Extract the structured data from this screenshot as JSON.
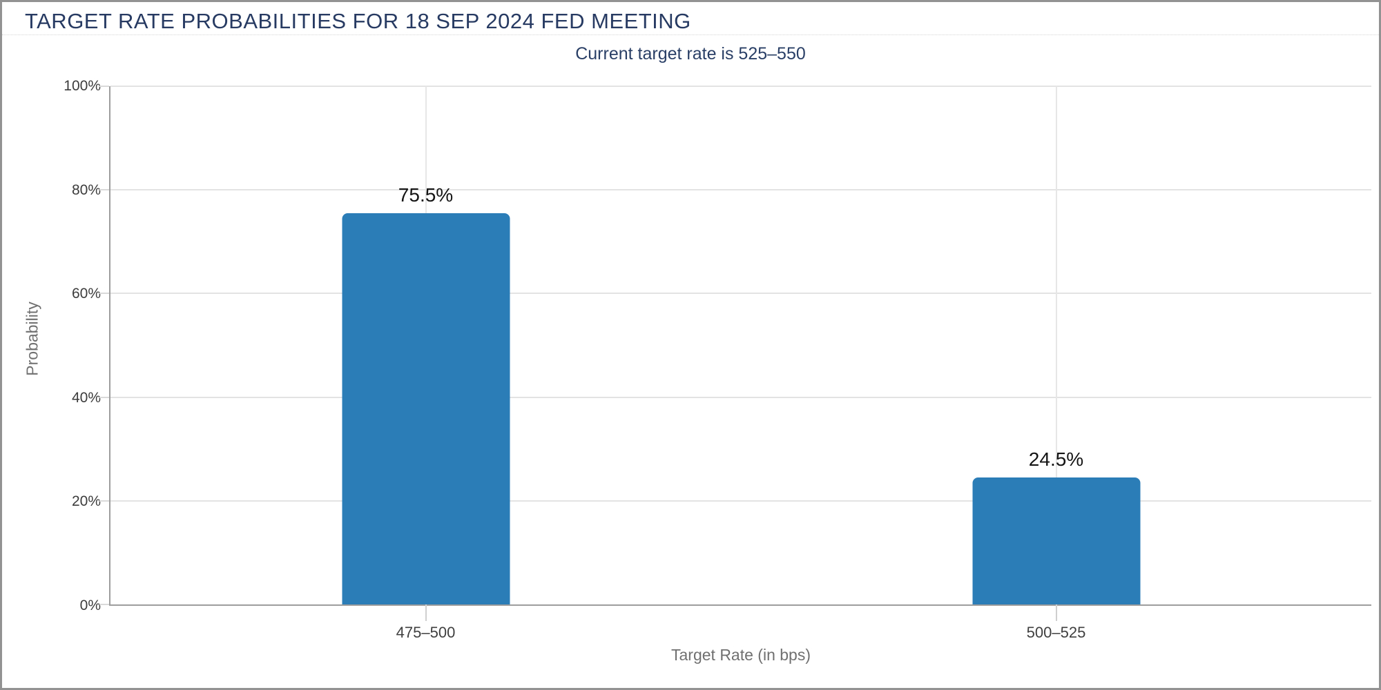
{
  "header": {
    "title": "TARGET RATE PROBABILITIES FOR 18 SEP 2024 FED MEETING"
  },
  "chart_data": {
    "type": "bar",
    "title": "TARGET RATE PROBABILITIES FOR 18 SEP 2024 FED MEETING",
    "subtitle": "Current target rate is 525–550",
    "categories": [
      "475–500",
      "500–525"
    ],
    "values": [
      75.5,
      24.5
    ],
    "value_labels": [
      "75.5%",
      "24.5%"
    ],
    "xlabel": "Target Rate (in bps)",
    "ylabel": "Probability",
    "ylim": [
      0,
      100
    ],
    "yticks": [
      "100%",
      "80%",
      "60%",
      "40%",
      "20%",
      "0%"
    ],
    "grid": true,
    "legend": false,
    "bar_color": "#2b7db8"
  },
  "colors": {
    "title_text": "#263a62",
    "subtitle_text": "#2a3f66",
    "bar": "#2b7db8",
    "axis_line": "#9d9d9d",
    "gridline": "#e3e3e3",
    "tick_label": "#3c3c3c",
    "axis_title": "#707070",
    "value_label": "#141414",
    "panel_border": "#929292"
  }
}
